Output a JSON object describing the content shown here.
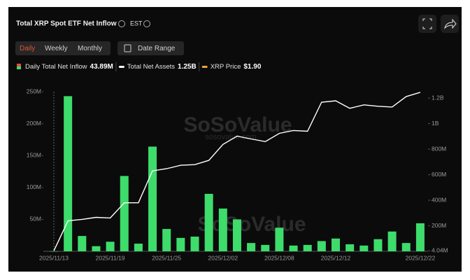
{
  "header": {
    "title": "Total XRP Spot ETF Net Inflow",
    "timezone": "EST",
    "tabs": [
      "Daily",
      "Weekly",
      "Monthly"
    ],
    "date_range": "Date Range"
  },
  "chart_data": {
    "type": "bar",
    "watermark": "SoSoValue",
    "watermark_url": "sosovalue.com",
    "categories": [
      "2025/11/13",
      null,
      null,
      null,
      "2025/11/19",
      null,
      null,
      null,
      "2025/11/25",
      null,
      null,
      null,
      "2025/12/02",
      null,
      null,
      null,
      "2025/12/08",
      null,
      null,
      null,
      "2025/12/12",
      null,
      null,
      null,
      null,
      null,
      "2025/12/22"
    ],
    "series": [
      {
        "name": "Daily Total Net Inflow",
        "current": "43.89M",
        "color": "#3ddc6b",
        "values": [
          0,
          243,
          24,
          8,
          15,
          118,
          12,
          164,
          35,
          21,
          23,
          90,
          67,
          50,
          13,
          10,
          37,
          9,
          10,
          16,
          20,
          11,
          9,
          19,
          31,
          13,
          43.89
        ]
      },
      {
        "name": "Total Net Assets",
        "current": "1.25B",
        "color": "#ffffff",
        "type": "line",
        "axis": "y2",
        "values": [
          4.04,
          239,
          250,
          266,
          261,
          380,
          380,
          630,
          647,
          674,
          679,
          712,
          837,
          902,
          880,
          859,
          924,
          946,
          940,
          1168,
          1179,
          1120,
          1147,
          1136,
          1130,
          1212,
          1245
        ]
      },
      {
        "name": "XRP Price",
        "current": "$1.90",
        "color": "#f0a33a"
      }
    ],
    "ylim": [
      0,
      250
    ],
    "yticks": [
      {
        "value": 50,
        "label": "50M"
      },
      {
        "value": 100,
        "label": "100M"
      },
      {
        "value": 150,
        "label": "150M"
      },
      {
        "value": 200,
        "label": "200M"
      },
      {
        "value": 250,
        "label": "250M"
      }
    ],
    "y2lim": [
      0,
      1250
    ],
    "y2ticks": [
      {
        "value": 4.04,
        "label": "4.04M"
      },
      {
        "value": 200,
        "label": "200M"
      },
      {
        "value": 400,
        "label": "400M"
      },
      {
        "value": 600,
        "label": "600M"
      },
      {
        "value": 800,
        "label": "800M"
      },
      {
        "value": 1000,
        "label": "1B"
      },
      {
        "value": 1200,
        "label": "1.2B"
      }
    ]
  }
}
